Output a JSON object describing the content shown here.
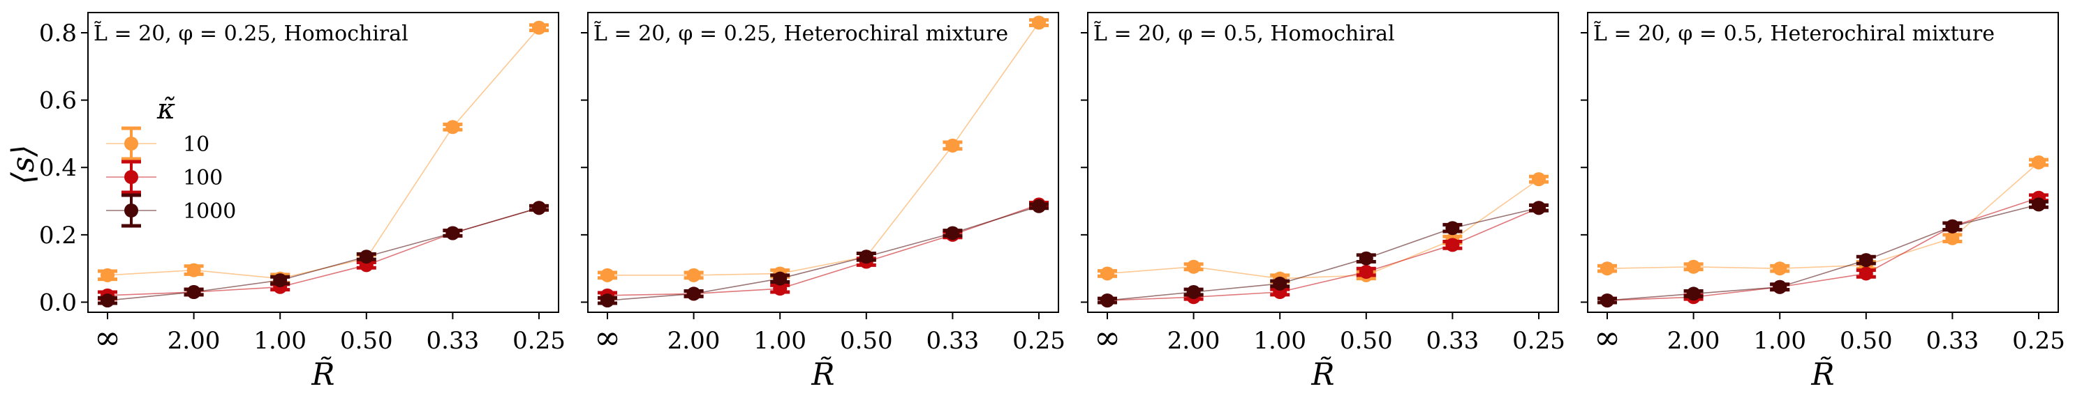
{
  "chart_data": [
    {
      "type": "line",
      "title": "L̃ = 20, φ = 0.25, Homochiral",
      "xlabel": "R̃",
      "ylabel": "⟨s⟩",
      "categories": [
        "∞",
        "2.00",
        "1.00",
        "0.50",
        "0.33",
        "0.25"
      ],
      "ylim": [
        -0.03,
        0.86
      ],
      "yticks": [
        "0.0",
        "0.2",
        "0.4",
        "0.6",
        "0.8"
      ],
      "grid": false,
      "legend": {
        "title": "κ̃",
        "placement": "center-left"
      },
      "series": [
        {
          "name": "10",
          "color": "#fd9a3b",
          "values": [
            0.08,
            0.095,
            0.07,
            0.13,
            0.52,
            0.815
          ],
          "errors": [
            0.012,
            0.012,
            0.012,
            0.01,
            0.008,
            0.008
          ]
        },
        {
          "name": "100",
          "color": "#c5080d",
          "values": [
            0.02,
            0.03,
            0.045,
            0.11,
            0.205,
            0.28
          ],
          "errors": [
            0.01,
            0.008,
            0.008,
            0.008,
            0.008,
            0.006
          ]
        },
        {
          "name": "1000",
          "color": "#4a0505",
          "values": [
            0.005,
            0.03,
            0.065,
            0.135,
            0.205,
            0.28
          ],
          "errors": [
            0.008,
            0.008,
            0.01,
            0.008,
            0.008,
            0.006
          ]
        }
      ]
    },
    {
      "type": "line",
      "title": "L̃ = 20, φ = 0.25, Heterochiral mixture",
      "xlabel": "R̃",
      "ylabel": "",
      "categories": [
        "∞",
        "2.00",
        "1.00",
        "0.50",
        "0.33",
        "0.25"
      ],
      "ylim": [
        -0.03,
        0.86
      ],
      "yticks": [
        "0.0",
        "0.2",
        "0.4",
        "0.6",
        "0.8"
      ],
      "grid": false,
      "series": [
        {
          "name": "10",
          "color": "#fd9a3b",
          "values": [
            0.08,
            0.08,
            0.085,
            0.135,
            0.465,
            0.83
          ],
          "errors": [
            0.008,
            0.008,
            0.01,
            0.01,
            0.01,
            0.008
          ]
        },
        {
          "name": "100",
          "color": "#c5080d",
          "values": [
            0.02,
            0.025,
            0.04,
            0.12,
            0.2,
            0.29
          ],
          "errors": [
            0.008,
            0.008,
            0.01,
            0.01,
            0.008,
            0.006
          ]
        },
        {
          "name": "1000",
          "color": "#4a0505",
          "values": [
            0.005,
            0.025,
            0.07,
            0.135,
            0.205,
            0.285
          ],
          "errors": [
            0.008,
            0.008,
            0.01,
            0.01,
            0.008,
            0.006
          ]
        }
      ]
    },
    {
      "type": "line",
      "title": "L̃ = 20, φ = 0.5, Homochiral",
      "xlabel": "R̃",
      "ylabel": "",
      "categories": [
        "∞",
        "2.00",
        "1.00",
        "0.50",
        "0.33",
        "0.25"
      ],
      "ylim": [
        -0.03,
        0.86
      ],
      "yticks": [
        "0.0",
        "0.2",
        "0.4",
        "0.6",
        "0.8"
      ],
      "grid": false,
      "series": [
        {
          "name": "10",
          "color": "#fd9a3b",
          "values": [
            0.085,
            0.105,
            0.07,
            0.08,
            0.185,
            0.365
          ],
          "errors": [
            0.008,
            0.008,
            0.01,
            0.01,
            0.01,
            0.008
          ]
        },
        {
          "name": "100",
          "color": "#c5080d",
          "values": [
            0.005,
            0.015,
            0.03,
            0.09,
            0.17,
            0.28
          ],
          "errors": [
            0.006,
            0.006,
            0.008,
            0.01,
            0.01,
            0.008
          ]
        },
        {
          "name": "1000",
          "color": "#4a0505",
          "values": [
            0.005,
            0.03,
            0.055,
            0.13,
            0.22,
            0.28
          ],
          "errors": [
            0.006,
            0.008,
            0.008,
            0.01,
            0.01,
            0.008
          ]
        }
      ]
    },
    {
      "type": "line",
      "title": "L̃ = 20, φ = 0.5, Heterochiral mixture",
      "xlabel": "R̃",
      "ylabel": "",
      "categories": [
        "∞",
        "2.00",
        "1.00",
        "0.50",
        "0.33",
        "0.25"
      ],
      "ylim": [
        -0.03,
        0.86
      ],
      "yticks": [
        "0.0",
        "0.2",
        "0.4",
        "0.6",
        "0.8"
      ],
      "grid": false,
      "series": [
        {
          "name": "10",
          "color": "#fd9a3b",
          "values": [
            0.1,
            0.105,
            0.1,
            0.11,
            0.19,
            0.415
          ],
          "errors": [
            0.008,
            0.008,
            0.008,
            0.01,
            0.01,
            0.008
          ]
        },
        {
          "name": "100",
          "color": "#c5080d",
          "values": [
            0.005,
            0.015,
            0.045,
            0.085,
            0.225,
            0.31
          ],
          "errors": [
            0.006,
            0.006,
            0.008,
            0.01,
            0.01,
            0.008
          ]
        },
        {
          "name": "1000",
          "color": "#4a0505",
          "values": [
            0.005,
            0.025,
            0.045,
            0.125,
            0.225,
            0.29
          ],
          "errors": [
            0.006,
            0.008,
            0.008,
            0.01,
            0.01,
            0.008
          ]
        }
      ]
    }
  ]
}
